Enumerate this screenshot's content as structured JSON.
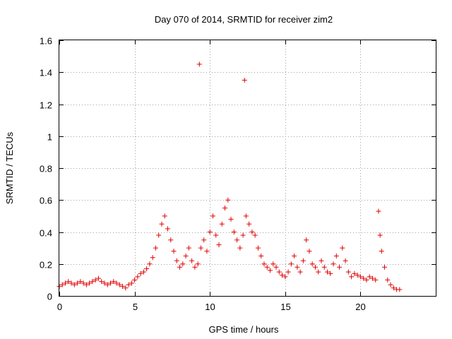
{
  "chart_data": {
    "type": "scatter",
    "title": "Day 070 of 2014, SRMTID for receiver zim2",
    "xlabel": "GPS time / hours",
    "ylabel": "SRMTID / TECUs",
    "xlim": [
      0,
      25
    ],
    "ylim": [
      0,
      1.6
    ],
    "xticks": [
      0,
      5,
      10,
      15,
      20
    ],
    "yticks": [
      0,
      0.2,
      0.4,
      0.6,
      0.8,
      1,
      1.2,
      1.4,
      1.6
    ],
    "ytick_labels": [
      "0",
      "0.2",
      "0.4",
      "0.6",
      "0.8",
      "1",
      "1.2",
      "1.4",
      "1.6"
    ],
    "grid": true,
    "marker": "+",
    "color": "#e00000",
    "series": [
      {
        "name": "zim2",
        "x": [
          0.0,
          0.2,
          0.4,
          0.6,
          0.8,
          1.0,
          1.2,
          1.4,
          1.6,
          1.8,
          2.0,
          2.2,
          2.4,
          2.6,
          2.8,
          3.0,
          3.2,
          3.4,
          3.6,
          3.8,
          4.0,
          4.2,
          4.4,
          4.6,
          4.8,
          5.0,
          5.2,
          5.4,
          5.6,
          5.8,
          6.0,
          6.2,
          6.4,
          6.6,
          6.8,
          7.0,
          7.2,
          7.4,
          7.6,
          7.8,
          8.0,
          8.2,
          8.4,
          8.6,
          8.8,
          9.0,
          9.2,
          9.3,
          9.4,
          9.6,
          9.8,
          10.0,
          10.2,
          10.4,
          10.6,
          10.8,
          11.0,
          11.2,
          11.4,
          11.6,
          11.8,
          12.0,
          12.2,
          12.3,
          12.4,
          12.6,
          12.8,
          13.0,
          13.2,
          13.4,
          13.6,
          13.8,
          14.0,
          14.2,
          14.4,
          14.6,
          14.8,
          15.0,
          15.2,
          15.4,
          15.6,
          15.8,
          16.0,
          16.2,
          16.4,
          16.6,
          16.8,
          17.0,
          17.2,
          17.4,
          17.6,
          17.8,
          18.0,
          18.2,
          18.4,
          18.6,
          18.8,
          19.0,
          19.2,
          19.4,
          19.6,
          19.8,
          20.0,
          20.2,
          20.4,
          20.6,
          20.8,
          21.0,
          21.2,
          21.3,
          21.4,
          21.6,
          21.8,
          22.0,
          22.2,
          22.4,
          22.6
        ],
        "y": [
          0.06,
          0.07,
          0.08,
          0.09,
          0.08,
          0.07,
          0.08,
          0.09,
          0.08,
          0.07,
          0.08,
          0.09,
          0.1,
          0.11,
          0.09,
          0.08,
          0.07,
          0.08,
          0.09,
          0.08,
          0.07,
          0.06,
          0.05,
          0.07,
          0.08,
          0.1,
          0.12,
          0.14,
          0.15,
          0.17,
          0.2,
          0.24,
          0.3,
          0.38,
          0.45,
          0.5,
          0.42,
          0.35,
          0.28,
          0.22,
          0.18,
          0.2,
          0.25,
          0.3,
          0.22,
          0.18,
          0.2,
          1.45,
          0.3,
          0.35,
          0.28,
          0.4,
          0.5,
          0.38,
          0.32,
          0.45,
          0.55,
          0.6,
          0.48,
          0.4,
          0.35,
          0.3,
          0.38,
          1.35,
          0.5,
          0.45,
          0.4,
          0.38,
          0.3,
          0.25,
          0.2,
          0.18,
          0.16,
          0.2,
          0.18,
          0.15,
          0.13,
          0.12,
          0.15,
          0.2,
          0.25,
          0.18,
          0.15,
          0.22,
          0.35,
          0.28,
          0.2,
          0.18,
          0.15,
          0.22,
          0.18,
          0.15,
          0.14,
          0.2,
          0.25,
          0.18,
          0.3,
          0.22,
          0.15,
          0.12,
          0.14,
          0.13,
          0.12,
          0.11,
          0.1,
          0.12,
          0.11,
          0.1,
          0.53,
          0.38,
          0.28,
          0.18,
          0.1,
          0.07,
          0.05,
          0.04,
          0.04
        ]
      }
    ]
  }
}
